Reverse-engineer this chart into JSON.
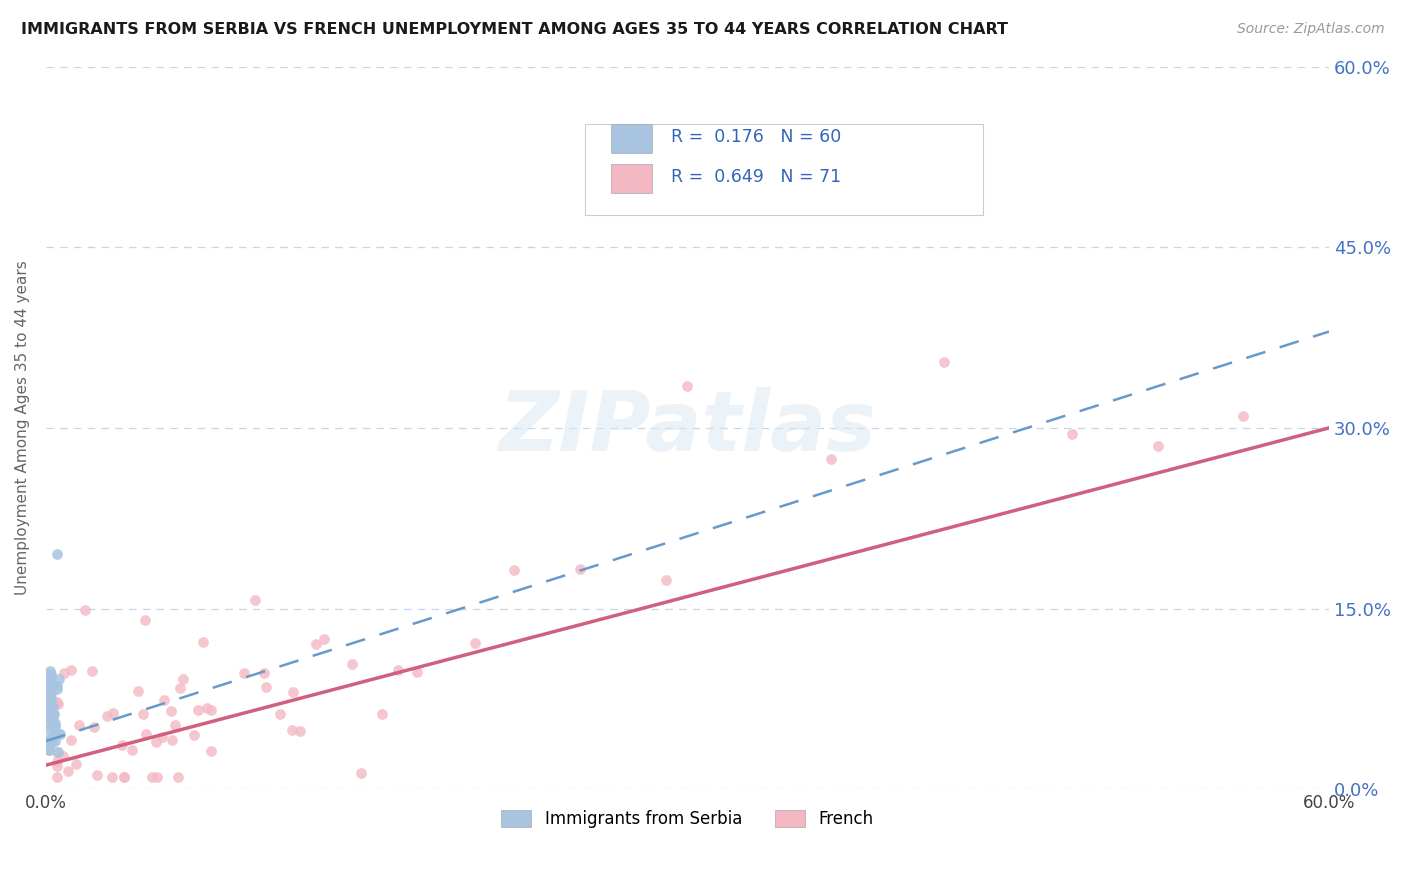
{
  "title": "IMMIGRANTS FROM SERBIA VS FRENCH UNEMPLOYMENT AMONG AGES 35 TO 44 YEARS CORRELATION CHART",
  "source": "Source: ZipAtlas.com",
  "ylabel": "Unemployment Among Ages 35 to 44 years",
  "legend_labels": [
    "Immigrants from Serbia",
    "French"
  ],
  "R_serbia": 0.176,
  "N_serbia": 60,
  "R_french": 0.649,
  "N_french": 71,
  "xlim": [
    0.0,
    0.6
  ],
  "ylim": [
    0.0,
    0.6
  ],
  "yticks": [
    0.0,
    0.15,
    0.3,
    0.45,
    0.6
  ],
  "color_serbia": "#a8c4e0",
  "color_french": "#f4b8c4",
  "color_trend_serbia": "#6699cc",
  "color_trend_french": "#d06080",
  "background_color": "#ffffff",
  "grid_color": "#c8d4e8",
  "trend_serbia_x0": 0.0,
  "trend_serbia_y0": 0.04,
  "trend_serbia_x1": 0.6,
  "trend_serbia_y1": 0.38,
  "trend_french_x0": 0.0,
  "trend_french_y0": 0.02,
  "trend_french_x1": 0.6,
  "trend_french_y1": 0.3
}
